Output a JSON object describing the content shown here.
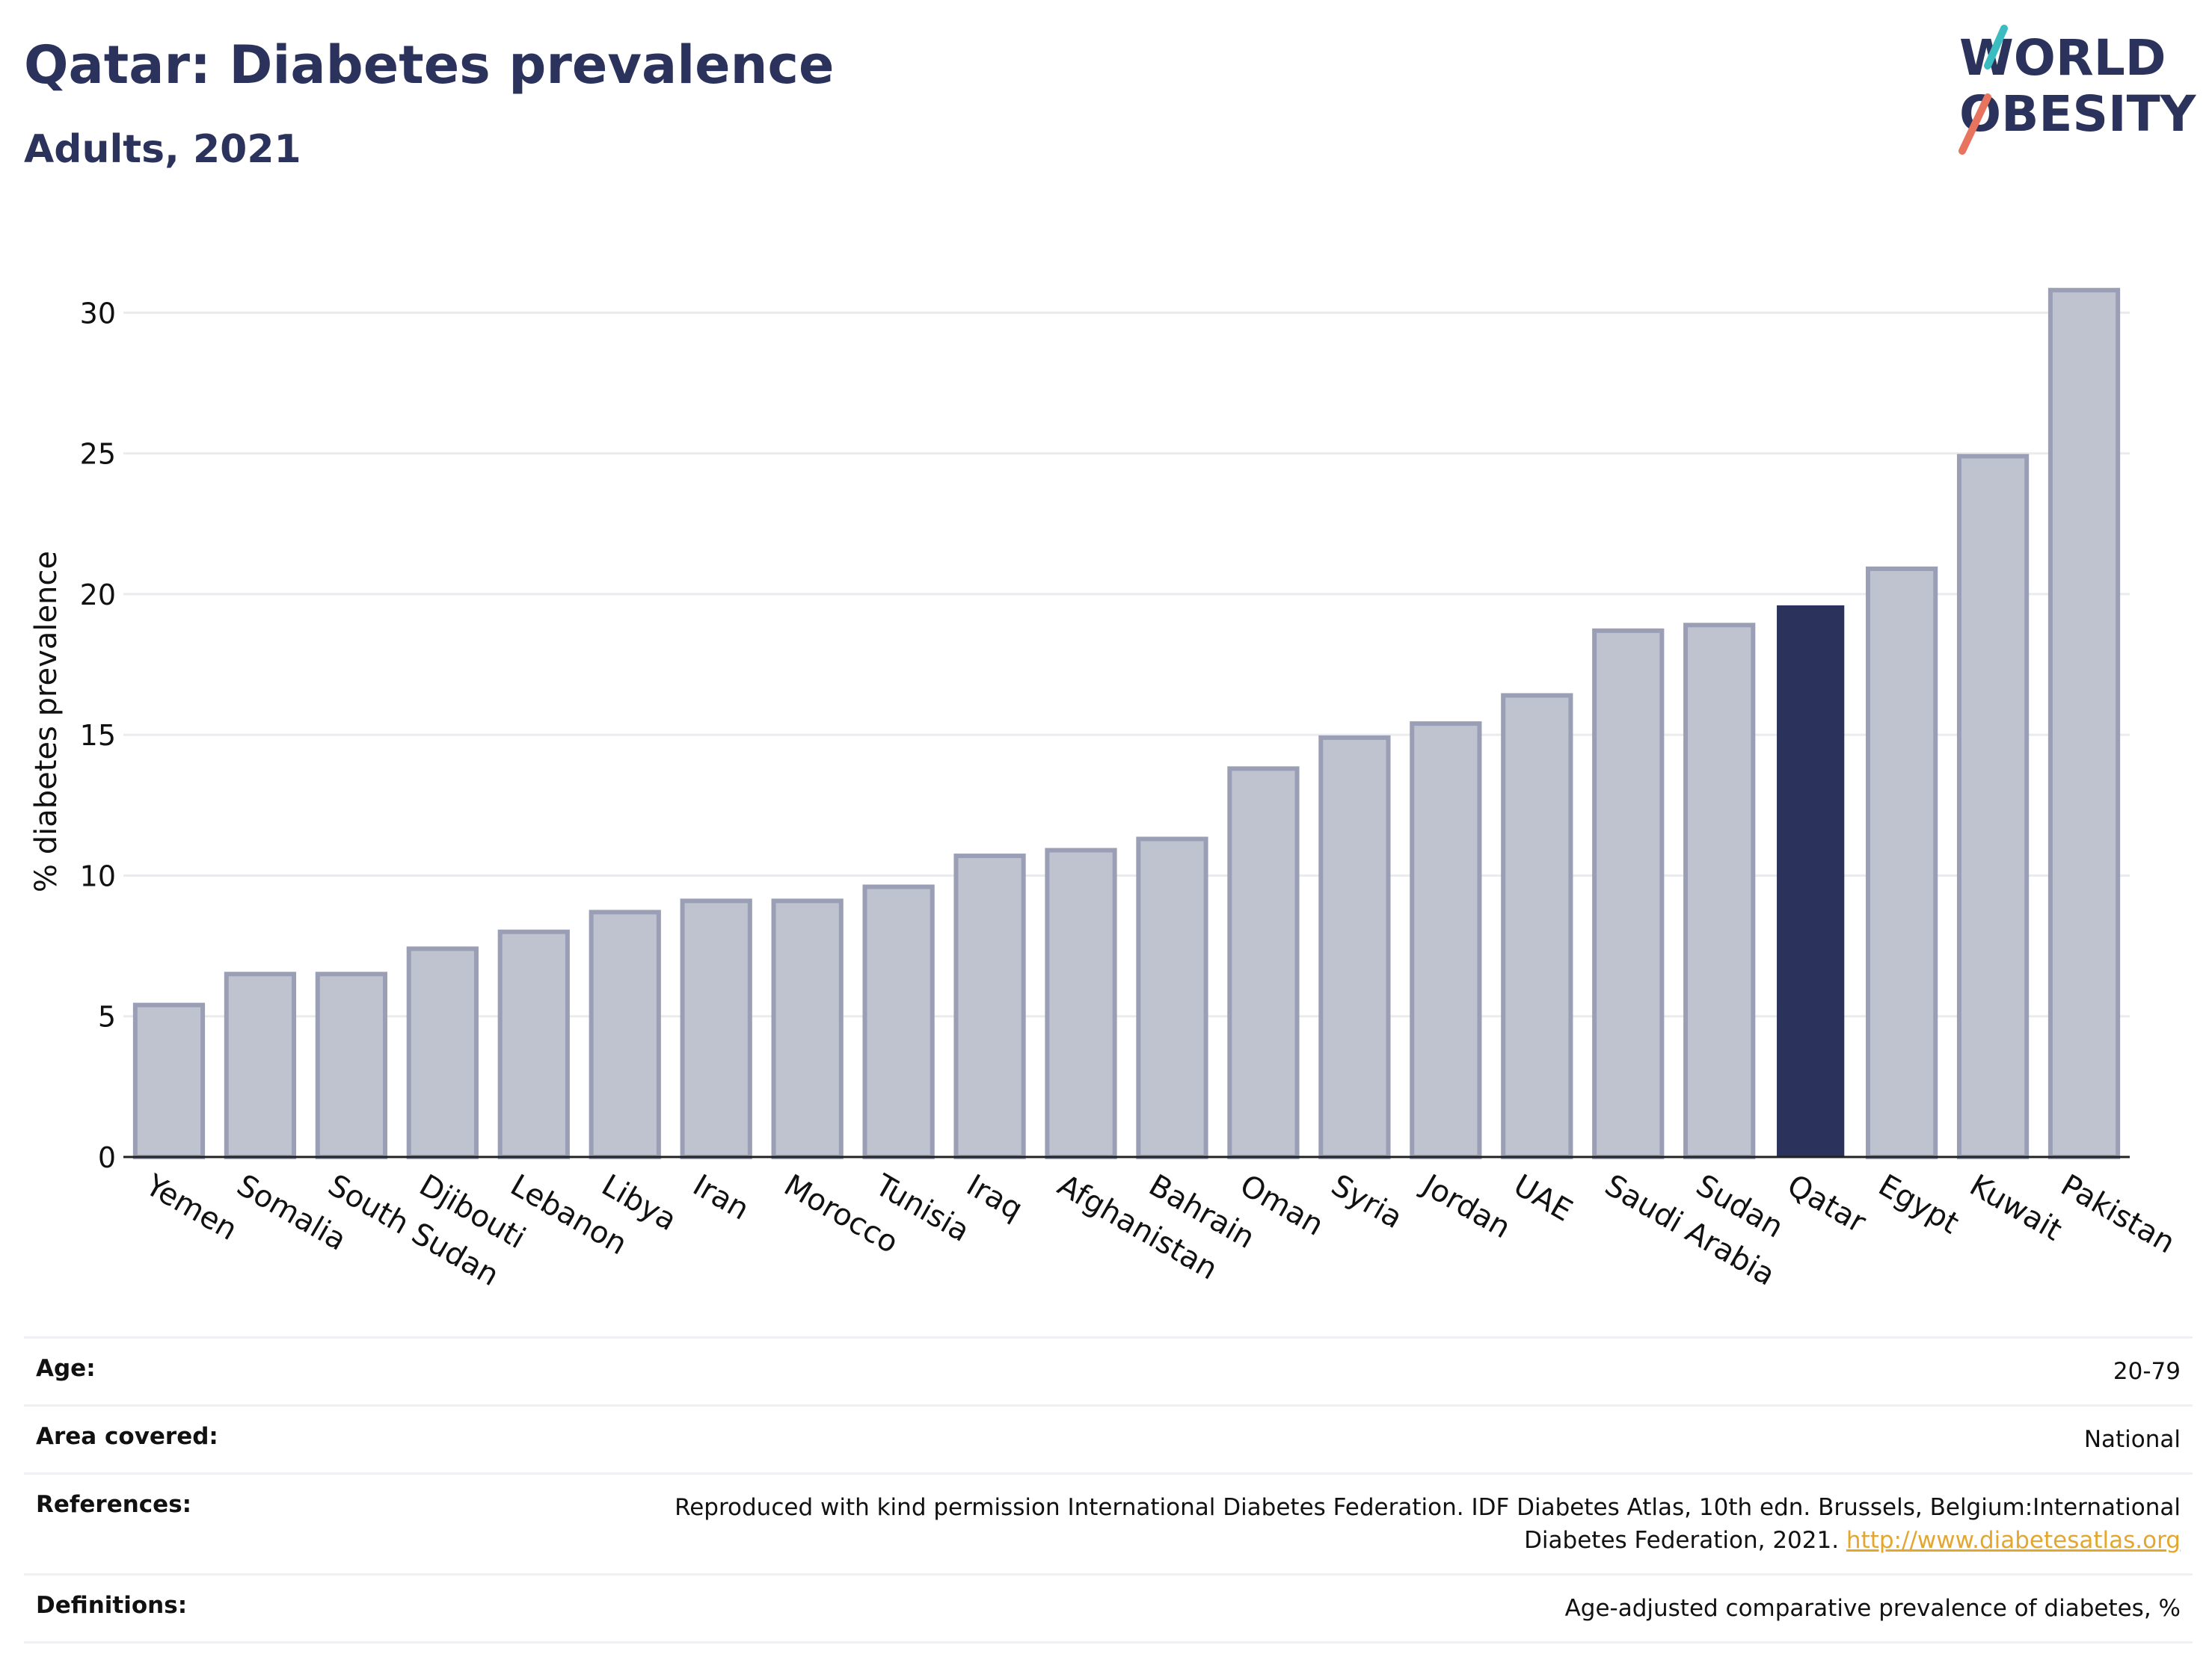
{
  "header": {
    "title": "Qatar: Diabetes prevalence",
    "subtitle": "Adults, 2021",
    "logo_line1": "WORLD",
    "logo_line2": "OBESITY"
  },
  "colors": {
    "bar_default": "#bfc2cf",
    "bar_border": "#9a9fb6",
    "bar_highlight": "#2b335c",
    "title": "#2b335c",
    "logo_teal": "#3bbcc1",
    "logo_coral": "#e8735f",
    "link": "#e3a72f"
  },
  "chart_data": {
    "type": "bar",
    "title": "Qatar: Diabetes prevalence",
    "subtitle": "Adults, 2021",
    "ylabel": "% diabetes prevalence",
    "xlabel": "",
    "ylim": [
      0,
      32
    ],
    "yticks": [
      0,
      5,
      10,
      15,
      20,
      25,
      30
    ],
    "grid": true,
    "highlight": "Qatar",
    "categories": [
      "Yemen",
      "Somalia",
      "South Sudan",
      "Djibouti",
      "Lebanon",
      "Libya",
      "Iran",
      "Morocco",
      "Tunisia",
      "Iraq",
      "Afghanistan",
      "Bahrain",
      "Oman",
      "Syria",
      "Jordan",
      "UAE",
      "Saudi Arabia",
      "Sudan",
      "Qatar",
      "Egypt",
      "Kuwait",
      "Pakistan"
    ],
    "values": [
      5.4,
      6.5,
      6.5,
      7.4,
      8.0,
      8.7,
      9.1,
      9.1,
      9.6,
      10.7,
      10.9,
      11.3,
      13.8,
      14.9,
      15.4,
      16.4,
      18.7,
      18.9,
      19.6,
      20.9,
      24.9,
      30.8
    ]
  },
  "footer": {
    "rows": [
      {
        "label": "Age:",
        "value": "20-79"
      },
      {
        "label": "Area covered:",
        "value": "National"
      },
      {
        "label": "References:",
        "value": "Reproduced with kind permission International Diabetes Federation.  IDF Diabetes Atlas, 10th edn. Brussels, Belgium:International Diabetes Federation, 2021.",
        "link": "http://www.diabetesatlas.org"
      },
      {
        "label": "Definitions:",
        "value": "Age-adjusted comparative prevalence of diabetes, %"
      }
    ]
  }
}
